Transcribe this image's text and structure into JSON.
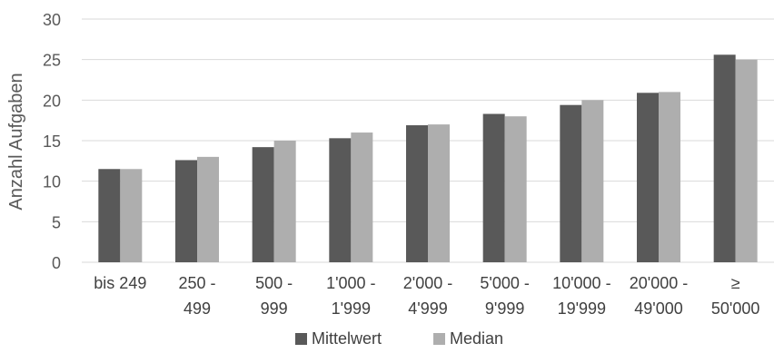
{
  "chart_data": {
    "type": "bar",
    "title": "",
    "xlabel": "",
    "ylabel": "Anzahl Aufgaben",
    "ylim": [
      0,
      30
    ],
    "yticks": [
      0,
      5,
      10,
      15,
      20,
      25,
      30
    ],
    "grid": true,
    "legend_position": "bottom",
    "categories": [
      [
        "bis 249"
      ],
      [
        "250 -",
        "499"
      ],
      [
        "500 -",
        "999"
      ],
      [
        "1'000 -",
        "1'999"
      ],
      [
        "2'000 -",
        "4'999"
      ],
      [
        "5'000 -",
        "9'999"
      ],
      [
        "10'000 -",
        "19'999"
      ],
      [
        "20'000 -",
        "49'000"
      ],
      [
        "≥",
        "50'000"
      ]
    ],
    "series": [
      {
        "name": "Mittelwert",
        "color": "#595959",
        "values": [
          11.5,
          12.6,
          14.2,
          15.3,
          16.9,
          18.3,
          19.4,
          20.9,
          25.6
        ]
      },
      {
        "name": "Median",
        "color": "#aeaeae",
        "values": [
          11.5,
          13.0,
          15.0,
          16.0,
          17.0,
          18.0,
          20.0,
          21.0,
          25.0
        ]
      }
    ]
  }
}
